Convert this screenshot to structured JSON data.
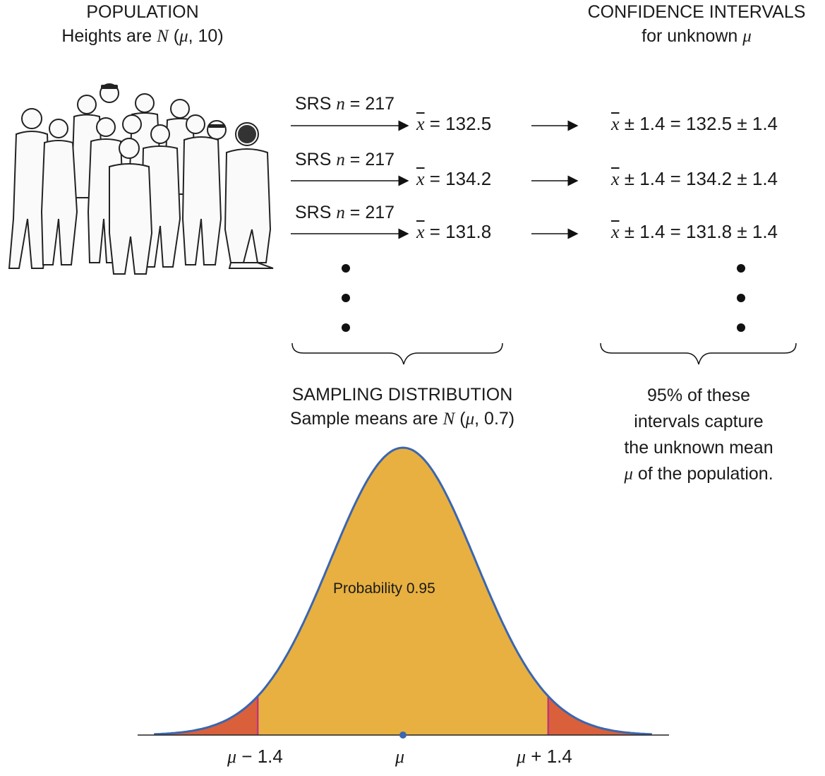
{
  "population": {
    "title": "POPULATION",
    "subtitle_prefix": "Heights are ",
    "subtitle_dist": "N",
    "subtitle_params_open": " (",
    "subtitle_mu": "μ",
    "subtitle_params_close": ", 10)"
  },
  "intervals": {
    "title": "CONFIDENCE INTERVALS",
    "subtitle_prefix": "for unknown ",
    "subtitle_mu": "μ"
  },
  "samples": [
    {
      "label_prefix": "SRS ",
      "label_n": "n",
      "label_value": " = 217",
      "xbar_symbol": "x",
      "mean_text": " = 132.5",
      "ci_pm": "±",
      "ci_text_1": " 1.4 = 132.5 ",
      "ci_text_2": " 1.4"
    },
    {
      "label_prefix": "SRS ",
      "label_n": "n",
      "label_value": " = 217",
      "xbar_symbol": "x",
      "mean_text": " = 134.2",
      "ci_pm": "±",
      "ci_text_1": " 1.4 = 134.2 ",
      "ci_text_2": " 1.4"
    },
    {
      "label_prefix": "SRS ",
      "label_n": "n",
      "label_value": " = 217",
      "xbar_symbol": "x",
      "mean_text": " = 131.8",
      "ci_pm": "±",
      "ci_text_1": " 1.4 = 131.8 ",
      "ci_text_2": " 1.4"
    }
  ],
  "sampling": {
    "title": "SAMPLING DISTRIBUTION",
    "subtitle_prefix": "Sample means are ",
    "subtitle_dist": "N",
    "subtitle_open": " (",
    "subtitle_mu": "μ",
    "subtitle_close": ", 0.7)"
  },
  "capture_note": {
    "line1": "95% of these",
    "line2": "intervals capture",
    "line3": "the unknown mean",
    "line4_mu": "μ",
    "line4_rest": " of the population."
  },
  "curve": {
    "area_label": "Probability 0.95",
    "mean": 0,
    "sd": 0.7,
    "central_probability": 0.95,
    "lower_bound": -1.4,
    "upper_bound": 1.4,
    "tick_lower_mu": "μ",
    "tick_lower_rest": " − 1.4",
    "tick_center": "μ",
    "tick_upper_mu": "μ",
    "tick_upper_rest": " + 1.4"
  },
  "colors": {
    "center_fill": "#e8b040",
    "tail_fill": "#d9603a",
    "curve_stroke": "#3a66b0",
    "bound_lines": "#c0357a",
    "axis": "#222222",
    "mean_dot": "#3a66b0"
  },
  "icons": {
    "population_crowd": "people-crowd-illustration",
    "arrow": "right-arrow-icon",
    "brace": "curly-brace-icon",
    "ellipsis_dots": "vertical-ellipsis-dots"
  }
}
